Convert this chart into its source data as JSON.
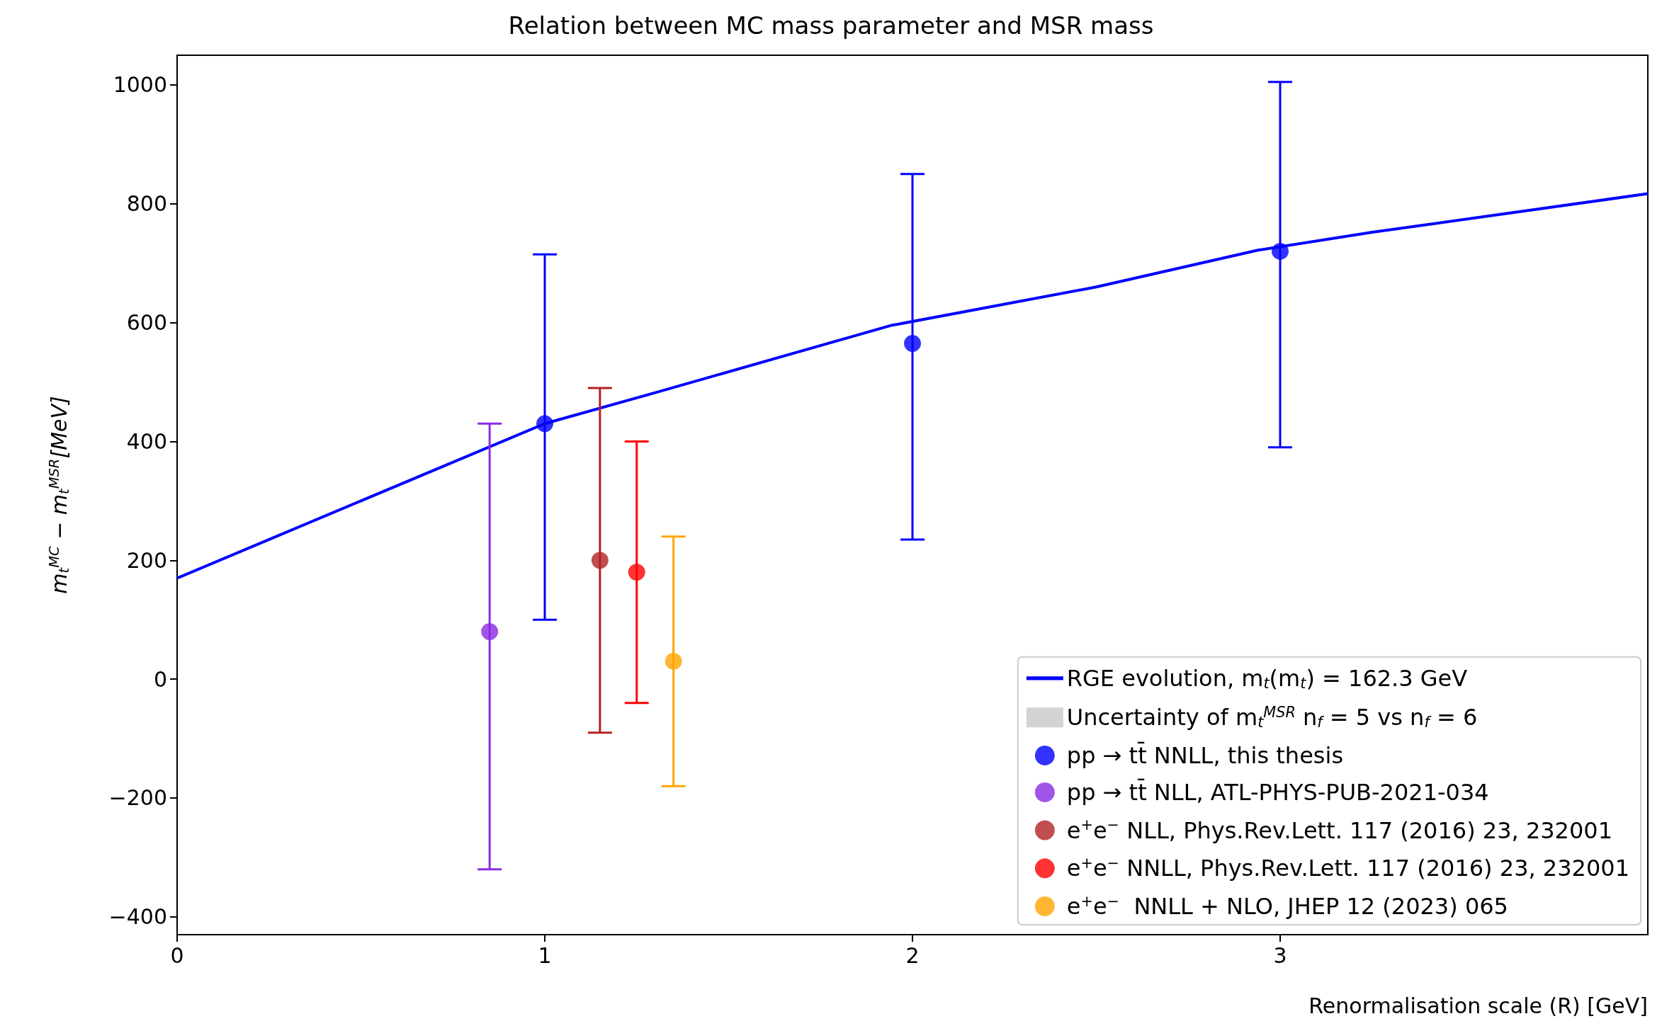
{
  "chart_data": {
    "type": "scatter",
    "title": "Relation between MC mass parameter and MSR mass",
    "xlabel": "Renormalisation scale (R) [GeV]",
    "ylabel": "m$_{t}$$^{MC}$ − m$_{t}$$^{MSR}$[MeV]",
    "xlim": [
      0,
      4
    ],
    "xticks": [
      0,
      1,
      2,
      3
    ],
    "ylim": [
      -430,
      1050
    ],
    "yticks": [
      -400,
      -200,
      0,
      200,
      400,
      600,
      800,
      1000
    ],
    "grid": false,
    "legend": "bottom right",
    "marker": "circle",
    "series": [
      {
        "name": "RGE evolution, m$_{t}$(m$_{t}$) = 162.3 GeV",
        "type": "line",
        "marker": "none",
        "line_style": "solid",
        "color": "#0000ff",
        "x": [
          0,
          1,
          1.3,
          1.94,
          2.5,
          2.94,
          3.25,
          4
        ],
        "values": [
          170,
          430,
          482,
          595,
          660,
          722,
          752,
          817
        ]
      },
      {
        "name": "Uncertainty of m$_{t}$$^{MSR}$ n$_{f}$ = 5 vs n$_{f}$ = 6",
        "type": "area",
        "color": "#d3d3d3"
      },
      {
        "name": "pp → tt̄ NNLL, this thesis",
        "color": "#0000ff",
        "x": [
          1,
          2,
          3
        ],
        "values": [
          430,
          565,
          720
        ],
        "errors": [
          [
            100,
            715
          ],
          [
            235,
            850
          ],
          [
            390,
            1005
          ]
        ]
      },
      {
        "name": "pp → tt̄ NLL, ATL-PHYS-PUB-2021-034",
        "color": "#8a2be2",
        "x": [
          0.85
        ],
        "values": [
          80
        ],
        "errors": [
          [
            -320,
            430
          ]
        ]
      },
      {
        "name": "e$^{+}$e$^{−}$ NLL, Phys.Rev.Lett. 117 (2016) 23, 232001",
        "color": "#b22222",
        "x": [
          1.15
        ],
        "values": [
          200
        ],
        "errors": [
          [
            -90,
            490
          ]
        ]
      },
      {
        "name": "e$^{+}$e$^{−}$ NNLL, Phys.Rev.Lett. 117 (2016) 23, 232001",
        "color": "#ff0000",
        "x": [
          1.25
        ],
        "values": [
          180
        ],
        "errors": [
          [
            -40,
            400
          ]
        ]
      },
      {
        "name": "e$^{+}$e$^{−}$  NNLL + NLO, JHEP 12 (2023) 065",
        "color": "#ffa500",
        "x": [
          1.35
        ],
        "values": [
          30
        ],
        "errors": [
          [
            -180,
            240
          ]
        ]
      }
    ]
  }
}
